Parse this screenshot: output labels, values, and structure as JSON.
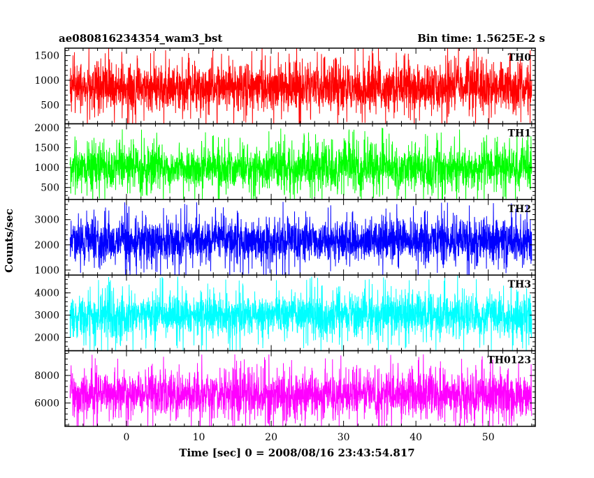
{
  "chart_data": {
    "type": "line",
    "title": "ae080816234354_wam3_bst",
    "bin_time_label": "Bin time: 1.5625E-2 s",
    "xlabel": "Time [sec] 0 = 2008/08/16 23:43:54.817",
    "ylabel": "Counts/sec",
    "xlim": [
      -8.5,
      56.5
    ],
    "data_x_range": [
      -7.8,
      56.0
    ],
    "x_ticks": [
      0,
      10,
      20,
      30,
      40,
      50
    ],
    "x_tick_labels": [
      "0",
      "10",
      "20",
      "30",
      "40",
      "50"
    ],
    "grid": false,
    "legend": "none",
    "panels": [
      {
        "name": "TH0",
        "color": "#ff0000",
        "ylim": [
          120,
          1650
        ],
        "y_ticks": [
          500,
          1000,
          1500
        ],
        "y_tick_labels": [
          "500",
          "1000",
          "1500"
        ],
        "mean": 850,
        "typical_min": 200,
        "typical_max": 1550,
        "noise_sd": 240
      },
      {
        "name": "TH1",
        "color": "#00ff00",
        "ylim": [
          200,
          2100
        ],
        "y_ticks": [
          500,
          1000,
          1500,
          2000
        ],
        "y_tick_labels": [
          "500",
          "1000",
          "1500",
          "2000"
        ],
        "mean": 1000,
        "typical_min": 300,
        "typical_max": 2000,
        "noise_sd": 270
      },
      {
        "name": "TH2",
        "color": "#0000ff",
        "ylim": [
          800,
          3800
        ],
        "y_ticks": [
          1000,
          2000,
          3000
        ],
        "y_tick_labels": [
          "1000",
          "2000",
          "3000"
        ],
        "mean": 2150,
        "typical_min": 1000,
        "typical_max": 3700,
        "noise_sd": 420
      },
      {
        "name": "TH3",
        "color": "#00ffff",
        "ylim": [
          1400,
          4800
        ],
        "y_ticks": [
          2000,
          3000,
          4000
        ],
        "y_tick_labels": [
          "2000",
          "3000",
          "4000"
        ],
        "mean": 3000,
        "typical_min": 1700,
        "typical_max": 4600,
        "noise_sd": 470
      },
      {
        "name": "TH0123",
        "color": "#ff00ff",
        "ylim": [
          4300,
          9800
        ],
        "y_ticks": [
          6000,
          8000
        ],
        "y_tick_labels": [
          "6000",
          "8000"
        ],
        "mean": 6600,
        "typical_min": 4700,
        "typical_max": 9500,
        "noise_sd": 800
      }
    ]
  }
}
